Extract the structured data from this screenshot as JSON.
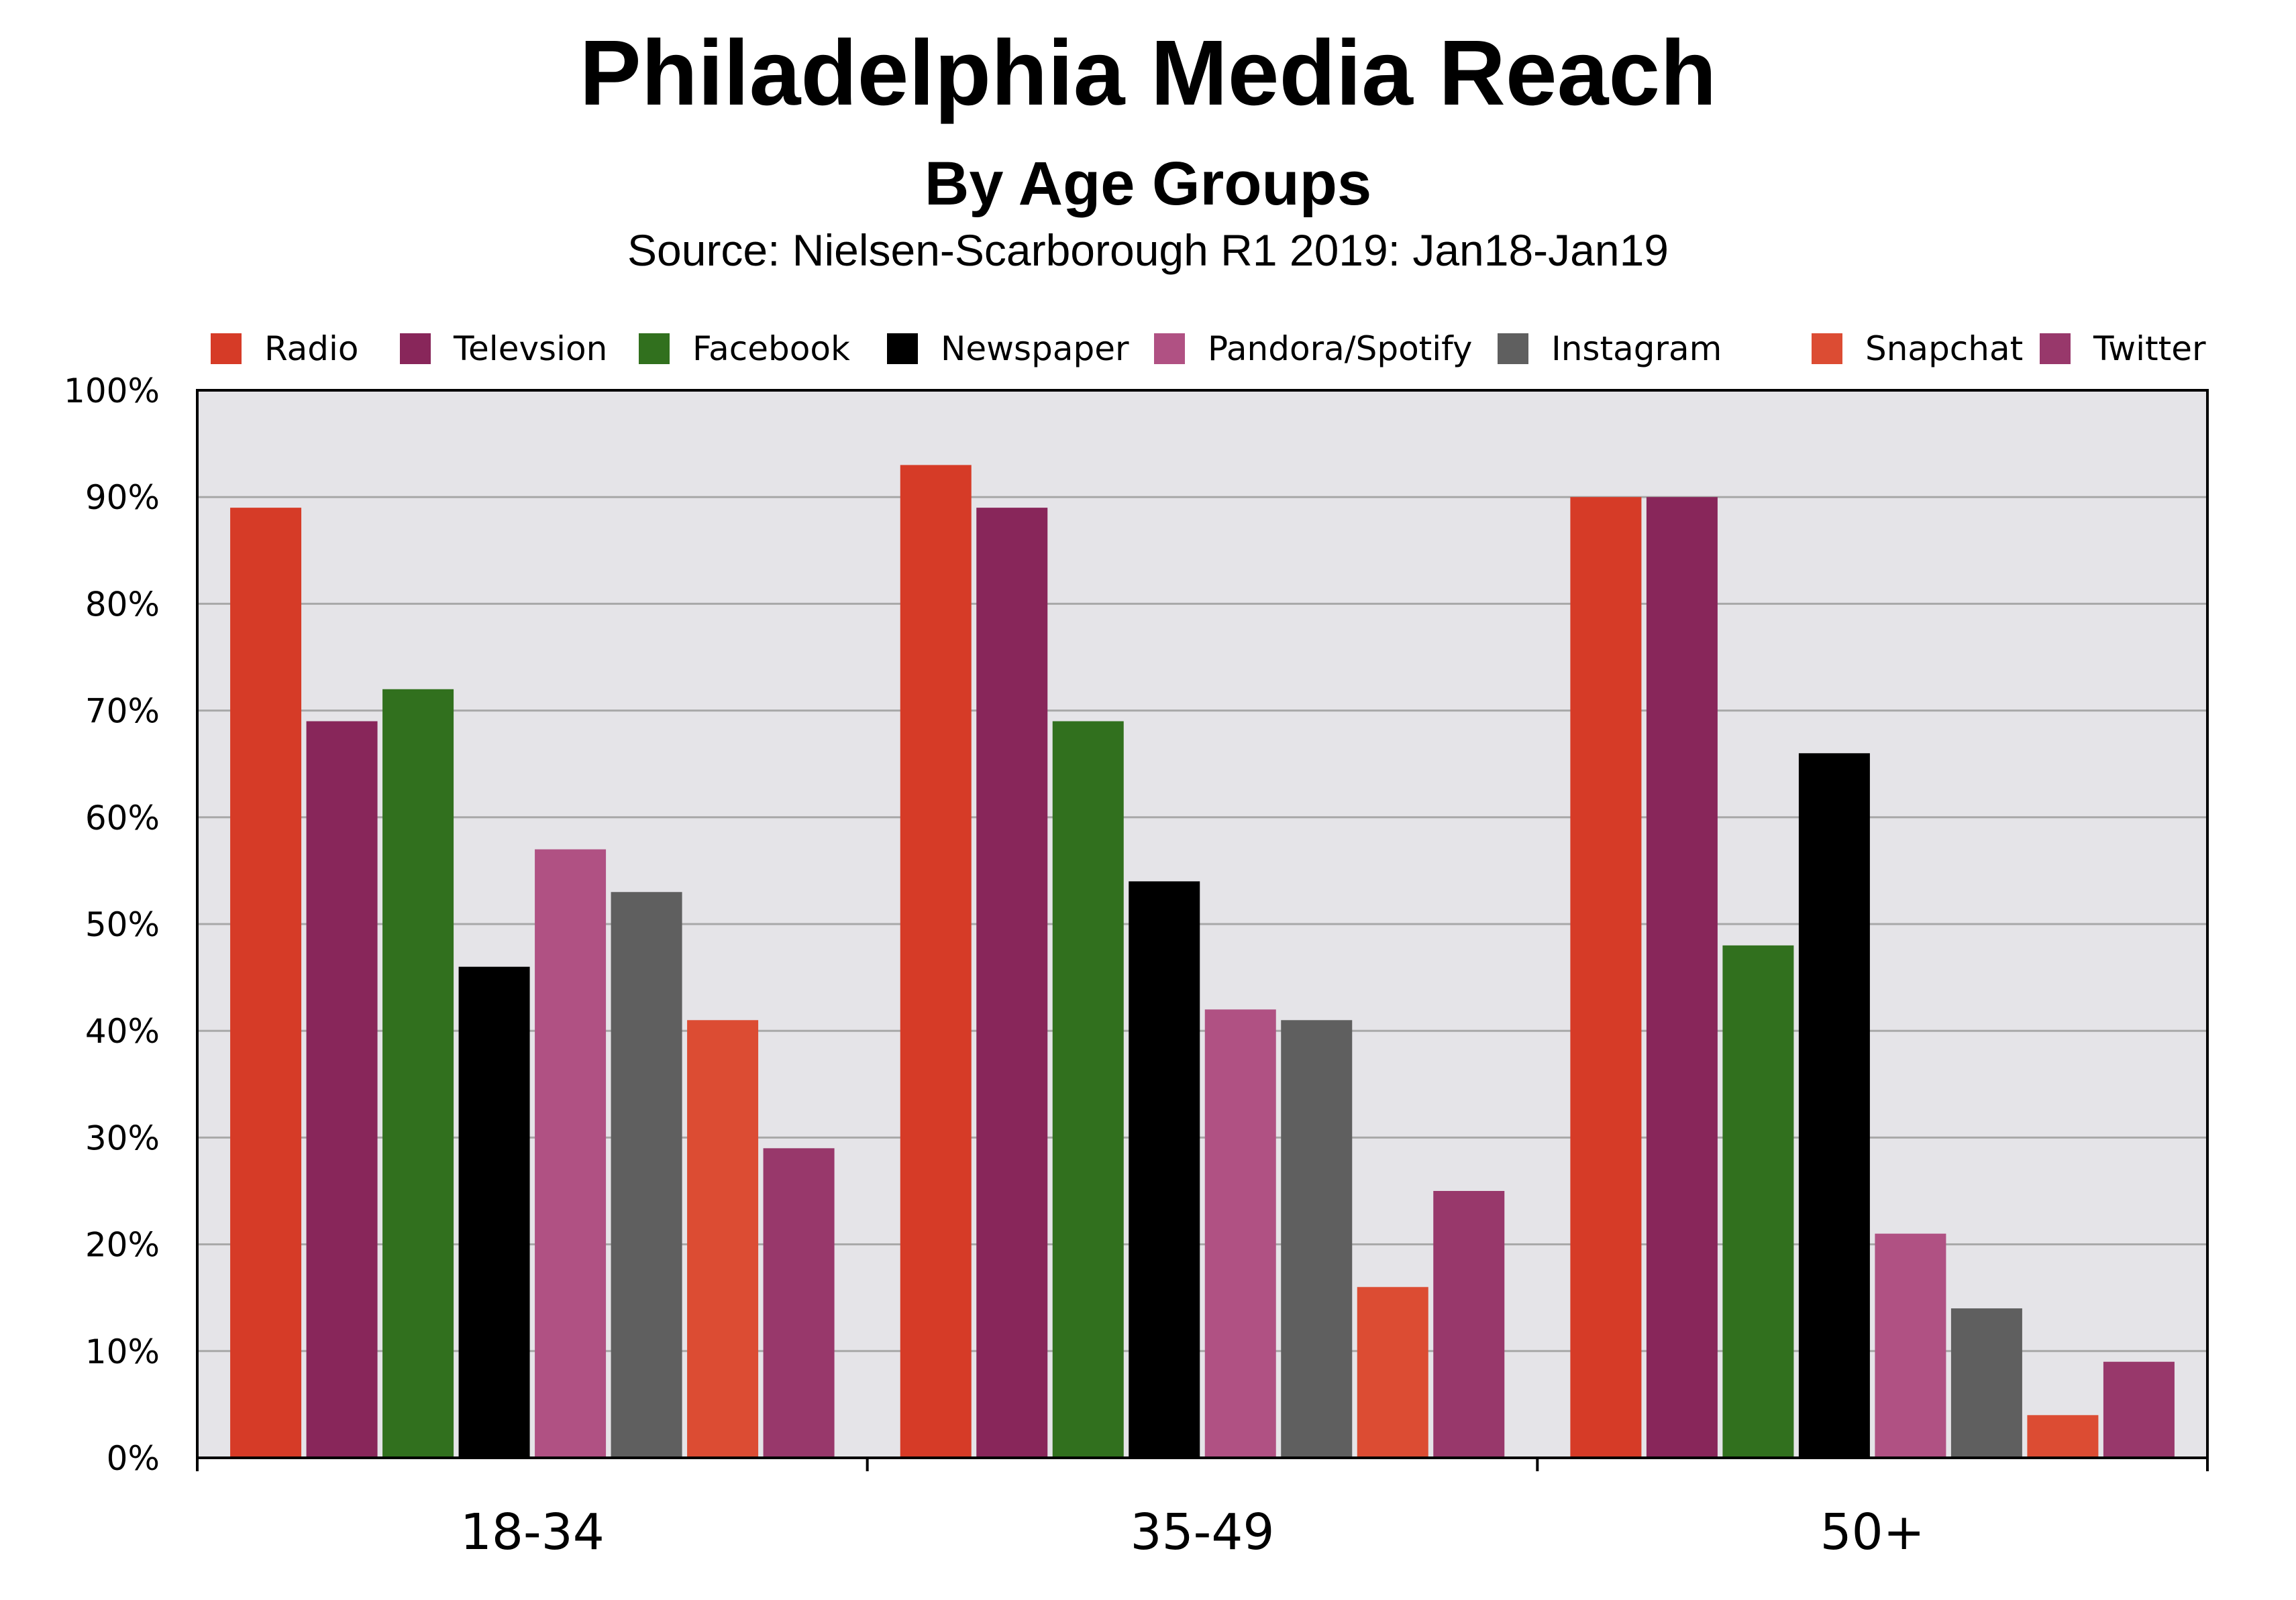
{
  "chart_data": {
    "type": "bar",
    "title": "Philadelphia Media Reach",
    "subtitle": "By Age Groups",
    "source": "Source: Nielsen-Scarborough R1 2019: Jan18-Jan19",
    "categories": [
      "18-34",
      "35-49",
      "50+"
    ],
    "series": [
      {
        "name": "Radio",
        "color": "#d63b27",
        "values": [
          89,
          93,
          90
        ]
      },
      {
        "name": "Televsion",
        "color": "#88265a",
        "values": [
          69,
          89,
          90
        ]
      },
      {
        "name": "Facebook",
        "color": "#31701e",
        "values": [
          72,
          69,
          48
        ]
      },
      {
        "name": "Newspaper",
        "color": "#000000",
        "values": [
          46,
          54,
          66
        ]
      },
      {
        "name": "Pandora/Spotify",
        "color": "#b05183",
        "values": [
          57,
          42,
          21
        ]
      },
      {
        "name": "Instagram",
        "color": "#5f5f5f",
        "values": [
          53,
          41,
          14
        ]
      },
      {
        "name": "Snapchat",
        "color": "#dc4c33",
        "values": [
          41,
          16,
          4
        ]
      },
      {
        "name": "Twitter",
        "color": "#98386b",
        "values": [
          29,
          25,
          9
        ]
      }
    ],
    "ylim": [
      0,
      100
    ],
    "yticks": [
      "0%",
      "10%",
      "20%",
      "30%",
      "40%",
      "50%",
      "60%",
      "70%",
      "80%",
      "90%",
      "100%"
    ],
    "grid": true,
    "legend": "top",
    "plot_background": "#e5e4e8"
  }
}
